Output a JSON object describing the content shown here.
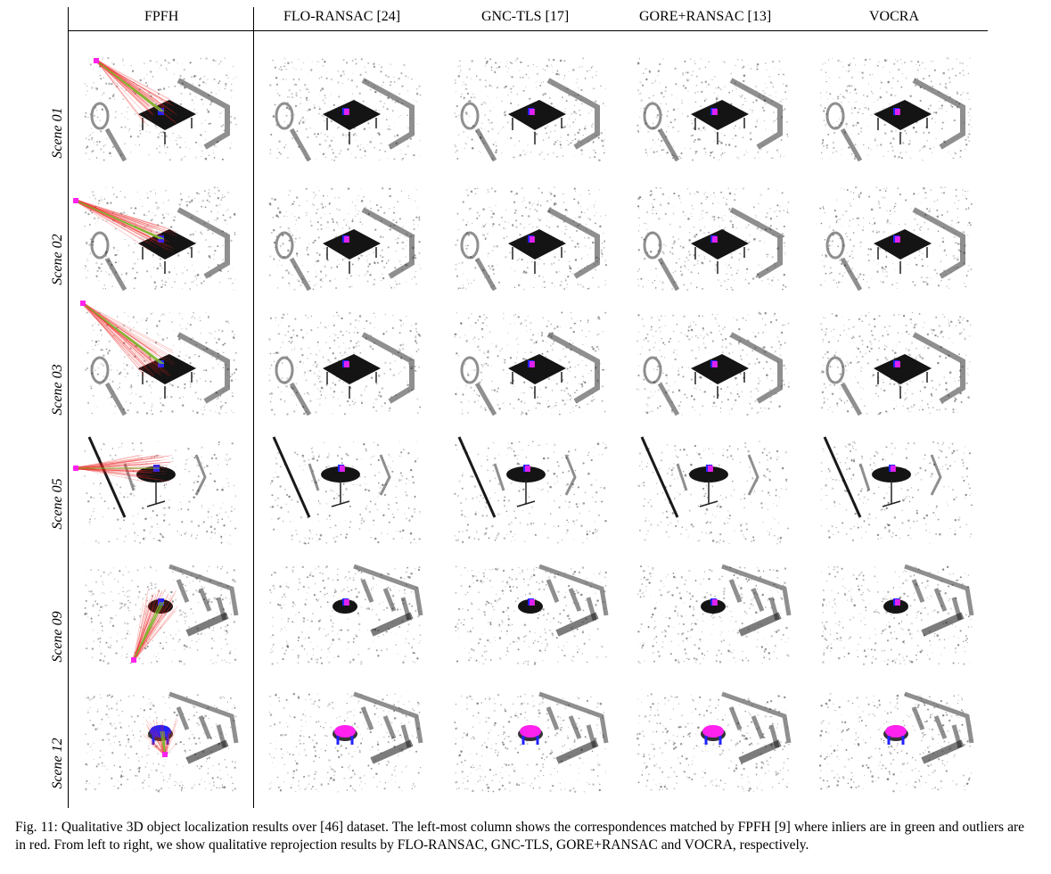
{
  "figure": {
    "columns": [
      "FPFH",
      "FLO-RANSAC [24]",
      "GNC-TLS [17]",
      "GORE+RANSAC [13]",
      "VOCRA"
    ],
    "rows": [
      "Scene 01",
      "Scene 02",
      "Scene 03",
      "Scene 05",
      "Scene 09",
      "Scene 12"
    ],
    "colors": {
      "object_reprojection": "#ff22ee",
      "object_ground_truth": "#2222ff",
      "inlier": "#7fb32a",
      "outlier": "#ee2222",
      "table_top": "#141414",
      "scan": "#555555"
    }
  },
  "caption": {
    "text": "Fig. 11: Qualitative 3D object localization results over [46] dataset. The left-most column shows the correspondences matched by FPFH [9] where inliers are in green and outliers are in red. From left to right, we show qualitative reprojection results by FLO-RANSAC, GNC-TLS, GORE+RANSAC and VOCRA, respectively."
  }
}
